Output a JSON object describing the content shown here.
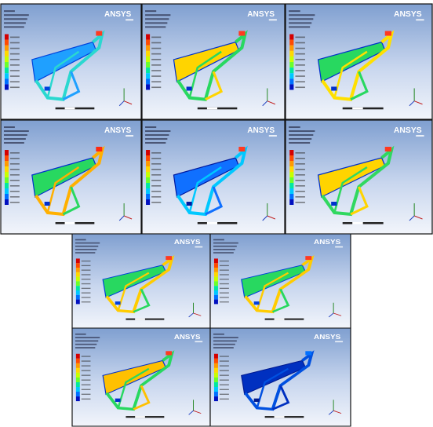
{
  "panels": [
    {
      "logo": "ANSYS"
    },
    {
      "logo": "ANSYS"
    },
    {
      "logo": "ANSYS"
    },
    {
      "logo": "ANSYS"
    },
    {
      "logo": "ANSYS"
    },
    {
      "logo": "ANSYS"
    },
    {
      "logo": "ANSYS"
    },
    {
      "logo": "ANSYS"
    },
    {
      "logo": "ANSYS"
    },
    {
      "logo": "ANSYS"
    }
  ]
}
